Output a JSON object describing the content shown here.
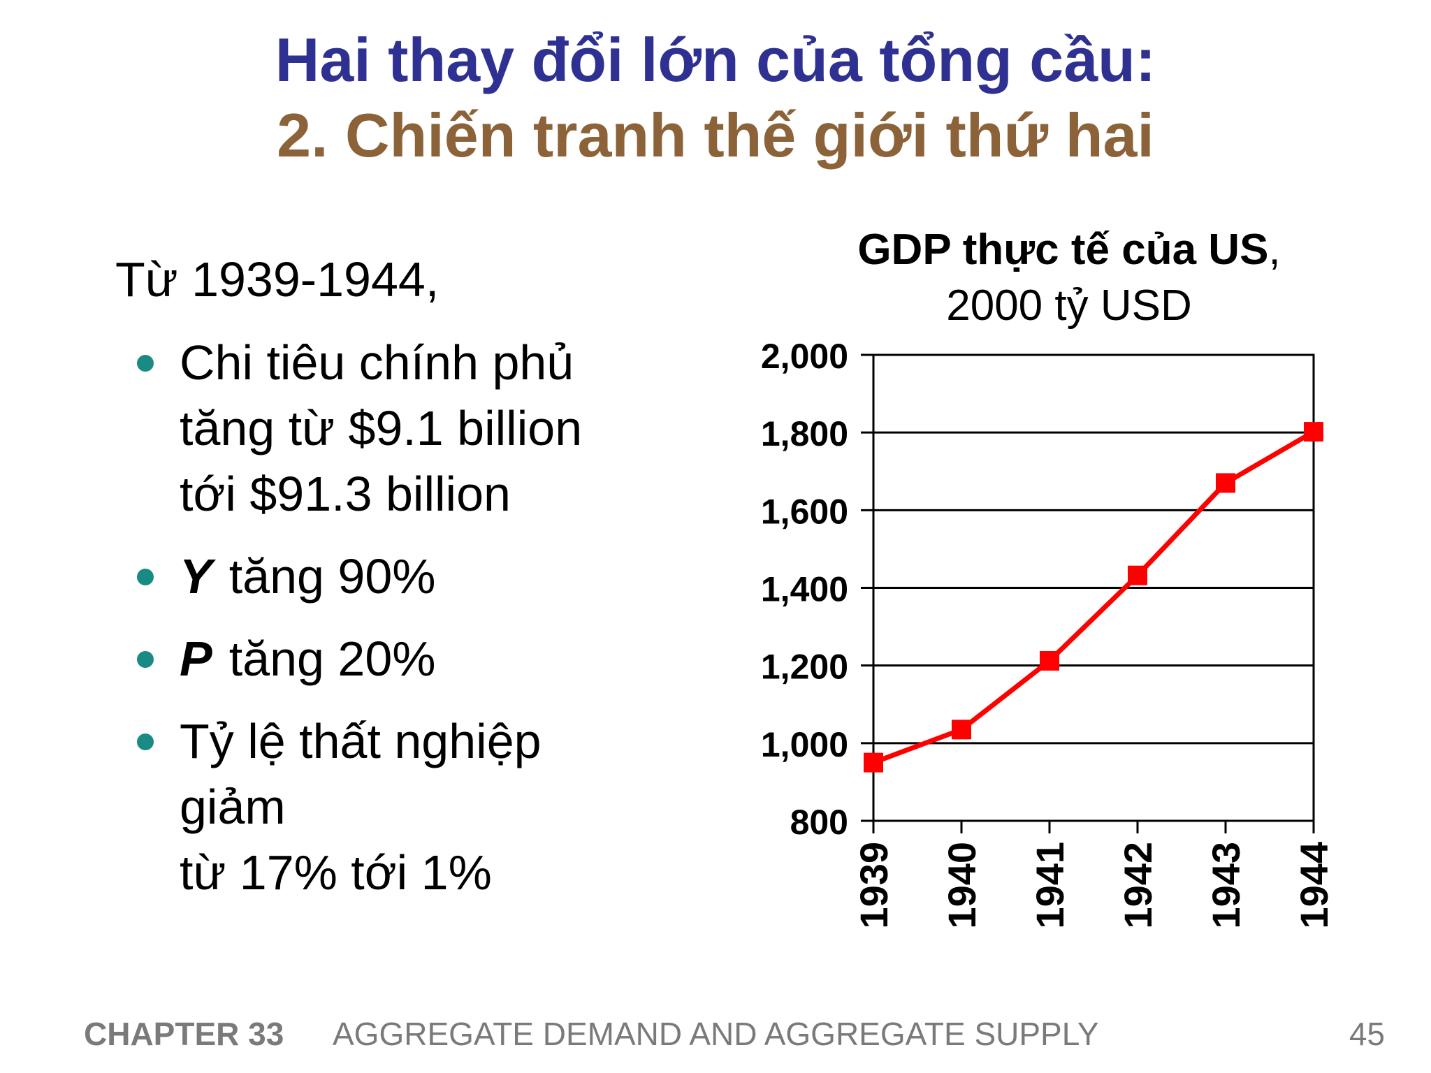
{
  "slide": {
    "title_line1": "Hai thay đổi lớn của tổng cầu:",
    "title_line2": "2. Chiến tranh thế giới thứ hai",
    "intro": "Từ 1939-1944,",
    "bullets": [
      {
        "lines": [
          "Chi tiêu chính phủ",
          "tăng từ $9.1 billion",
          "tới $91.3 billion"
        ]
      },
      {
        "var": "Y",
        "text": "tăng 90%"
      },
      {
        "var": "P",
        "text": "tăng 20%"
      },
      {
        "lines": [
          "Tỷ lệ thất nghiệp",
          "giảm",
          "từ 17% tới 1%"
        ]
      }
    ],
    "chart_title_bold": "GDP thực tế của US",
    "chart_title_comma": ",",
    "chart_subtitle": "2000 tỷ USD"
  },
  "footer": {
    "chapter": "CHAPTER 33",
    "subject": "AGGREGATE DEMAND AND AGGREGATE SUPPLY",
    "page": "45"
  },
  "colors": {
    "title_blue": "#2e3192",
    "title_brown": "#8c6239",
    "bullet_teal": "#1a8a84",
    "series_red": "#ff0000",
    "footer_gray": "#7a7a7a"
  },
  "chart_data": {
    "type": "line",
    "categories": [
      "1939",
      "1940",
      "1941",
      "1942",
      "1943",
      "1944"
    ],
    "series": [
      {
        "values": [
          950,
          1035,
          1212,
          1432,
          1670,
          1802
        ],
        "color": "#ff0000",
        "marker": "square"
      }
    ],
    "yticks": [
      "800",
      "1,000",
      "1,200",
      "1,400",
      "1,600",
      "1,800",
      "2,000"
    ],
    "ylim": [
      800,
      2000
    ],
    "grid": true,
    "legend": "none"
  }
}
